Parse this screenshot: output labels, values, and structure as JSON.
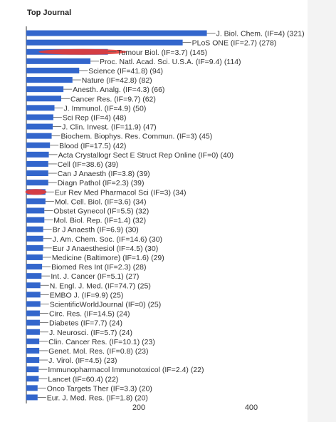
{
  "title": "Top Journal",
  "chart_data": {
    "type": "bar",
    "orientation": "horizontal",
    "title": "Top Journal",
    "xlim": [
      0,
      500
    ],
    "x_ticks": [
      "200",
      "400"
    ],
    "grid": false,
    "bar_color": "#3366cc",
    "highlight_color": "#e53935",
    "highlighted_labels": [
      "Tumour Biol. (IF=3.7) (145)",
      "Eur Rev Med Pharmacol Sci (IF=3) (34)"
    ],
    "categories": [
      "J. Biol. Chem. (IF=4) (321)",
      "PLoS ONE (IF=2.7) (278)",
      "Tumour Biol. (IF=3.7) (145)",
      "Proc. Natl. Acad. Sci. U.S.A. (IF=9.4) (114)",
      "Science (IF=41.8) (94)",
      "Nature (IF=42.8) (82)",
      "Anesth. Analg. (IF=4.3) (66)",
      "Cancer Res. (IF=9.7) (62)",
      "J. Immunol. (IF=4.9) (50)",
      "Sci Rep (IF=4) (48)",
      "J. Clin. Invest. (IF=11.9) (47)",
      "Biochem. Biophys. Res. Commun. (IF=3) (45)",
      "Blood (IF=17.5) (42)",
      "Acta Crystallogr Sect E Struct Rep Online (IF=0) (40)",
      "Cell (IF=38.6) (39)",
      "Can J Anaesth (IF=3.8) (39)",
      "Diagn Pathol (IF=2.3) (39)",
      "Eur Rev Med Pharmacol Sci (IF=3) (34)",
      "Mol. Cell. Biol. (IF=3.6) (34)",
      "Obstet Gynecol (IF=5.5) (32)",
      "Mol. Biol. Rep. (IF=1.4) (32)",
      "Br J Anaesth (IF=6.9) (30)",
      "J. Am. Chem. Soc. (IF=14.6) (30)",
      "Eur J Anaesthesiol (IF=4.5) (30)",
      "Medicine (Baltimore) (IF=1.6) (29)",
      "Biomed Res Int (IF=2.3) (28)",
      "Int. J. Cancer (IF=5.1) (27)",
      "N. Engl. J. Med. (IF=74.7) (25)",
      "EMBO J. (IF=9.9) (25)",
      "ScientificWorldJournal (IF=0) (25)",
      "Circ. Res. (IF=14.5) (24)",
      "Diabetes (IF=7.7) (24)",
      "J. Neurosci. (IF=5.7) (24)",
      "Clin. Cancer Res. (IF=10.1) (23)",
      "Genet. Mol. Res. (IF=0.8) (23)",
      "J. Virol. (IF=4.5) (23)",
      "Immunopharmacol Immunotoxicol (IF=2.4) (22)",
      "Lancet (IF=60.4) (22)",
      "Onco Targets Ther (IF=3.3) (20)",
      "Eur. J. Med. Res. (IF=1.8) (20)"
    ],
    "values": [
      321,
      278,
      145,
      114,
      94,
      82,
      66,
      62,
      50,
      48,
      47,
      45,
      42,
      40,
      39,
      39,
      39,
      34,
      34,
      32,
      32,
      30,
      30,
      30,
      29,
      28,
      27,
      25,
      25,
      25,
      24,
      24,
      24,
      23,
      23,
      23,
      22,
      22,
      20,
      20
    ]
  }
}
